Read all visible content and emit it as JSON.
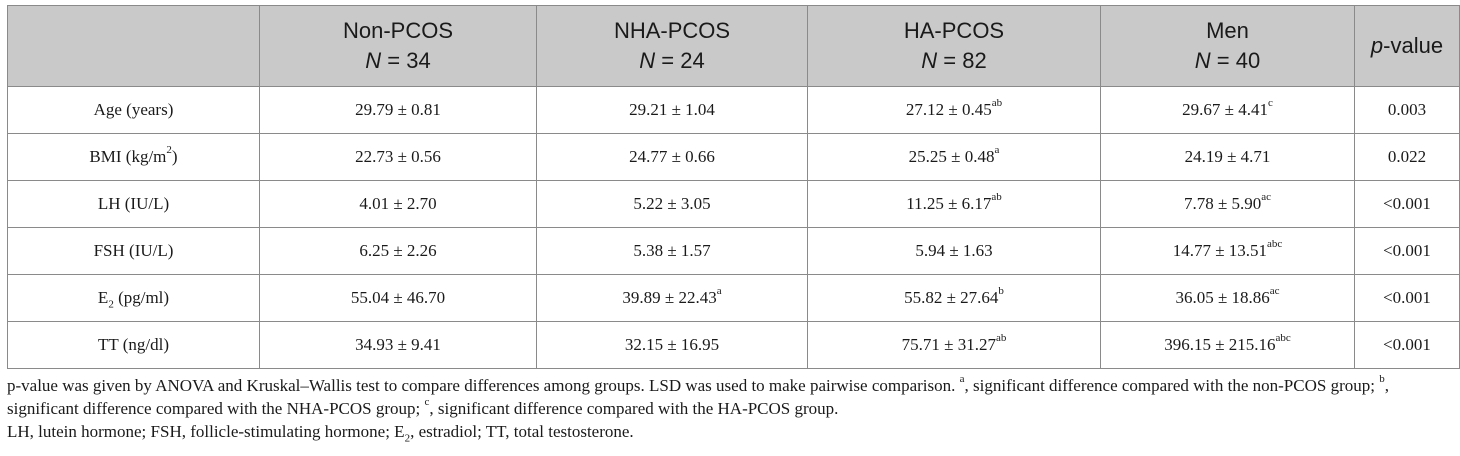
{
  "header": {
    "col1": {
      "name": "Non-PCOS",
      "n_prefix": "N",
      "n_value": "= 34"
    },
    "col2": {
      "name": "NHA-PCOS",
      "n_prefix": "N",
      "n_value": "= 24"
    },
    "col3": {
      "name": "HA-PCOS",
      "n_prefix": "N",
      "n_value": "= 82"
    },
    "col4": {
      "name": "Men",
      "n_prefix": "N",
      "n_value": "= 40"
    },
    "col5": {
      "p_italic": "p",
      "p_rest": "-value"
    }
  },
  "rows": [
    {
      "label": "Age (years)",
      "label_sup": "",
      "label_sub": "",
      "label_tail": "",
      "c1": "29.79 ± 0.81",
      "c1s": "",
      "c2": "29.21 ± 1.04",
      "c2s": "",
      "c3": "27.12 ± 0.45",
      "c3s": "ab",
      "c4": "29.67 ± 4.41",
      "c4s": "c",
      "p": "0.003"
    },
    {
      "label": "BMI (kg/m",
      "label_sup": "2",
      "label_sub": "",
      "label_tail": ")",
      "c1": "22.73 ± 0.56",
      "c1s": "",
      "c2": "24.77 ± 0.66",
      "c2s": "",
      "c3": "25.25 ± 0.48",
      "c3s": "a",
      "c4": "24.19 ± 4.71",
      "c4s": "",
      "p": "0.022"
    },
    {
      "label": "LH (IU/L)",
      "label_sup": "",
      "label_sub": "",
      "label_tail": "",
      "c1": "4.01 ± 2.70",
      "c1s": "",
      "c2": "5.22 ± 3.05",
      "c2s": "",
      "c3": "11.25 ± 6.17",
      "c3s": "ab",
      "c4": "7.78 ± 5.90",
      "c4s": "ac",
      "p": "<0.001"
    },
    {
      "label": "FSH (IU/L)",
      "label_sup": "",
      "label_sub": "",
      "label_tail": "",
      "c1": "6.25 ± 2.26",
      "c1s": "",
      "c2": "5.38 ± 1.57",
      "c2s": "",
      "c3": "5.94 ± 1.63",
      "c3s": "",
      "c4": "14.77 ± 13.51",
      "c4s": "abc",
      "p": "<0.001"
    },
    {
      "label": "E",
      "label_sup": "",
      "label_sub": "2",
      "label_tail": " (pg/ml)",
      "c1": "55.04 ± 46.70",
      "c1s": "",
      "c2": "39.89 ± 22.43",
      "c2s": "a",
      "c3": "55.82 ± 27.64",
      "c3s": "b",
      "c4": "36.05 ± 18.86",
      "c4s": "ac",
      "p": "<0.001"
    },
    {
      "label": "TT (ng/dl)",
      "label_sup": "",
      "label_sub": "",
      "label_tail": "",
      "c1": "34.93 ± 9.41",
      "c1s": "",
      "c2": "32.15 ± 16.95",
      "c2s": "",
      "c3": "75.71 ± 31.27",
      "c3s": "ab",
      "c4": "396.15 ± 215.16",
      "c4s": "abc",
      "p": "<0.001"
    }
  ],
  "footnote": {
    "line1_a": "p-value was given by ANOVA and Kruskal–Wallis test to compare differences among groups. LSD was used to make pairwise comparison. ",
    "sup_a": "a",
    "line1_b": ", significant difference compared with the non-PCOS group; ",
    "sup_b": "b",
    "line1_c": ", significant difference compared with the NHA-PCOS group; ",
    "sup_c": "c",
    "line1_d": ", significant difference compared with the HA-PCOS group.",
    "line2_a": "LH, lutein hormone; FSH, follicle-stimulating hormone; E",
    "line2_sub": "2",
    "line2_b": ", estradiol; TT, total testosterone."
  }
}
